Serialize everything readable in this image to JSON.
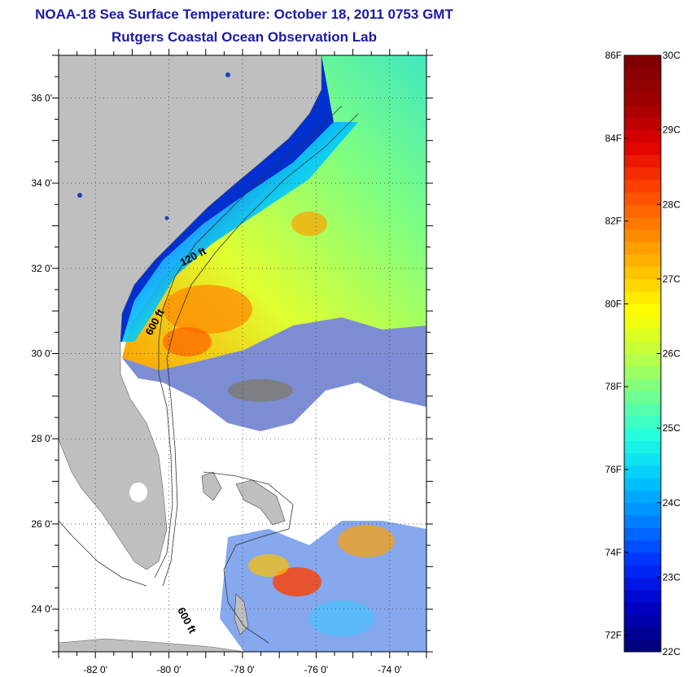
{
  "title": "NOAA-18 Sea Surface Temperature:  October 18, 2011 0753 GMT",
  "subtitle": "Rutgers Coastal Ocean Observation Lab",
  "map": {
    "lon_range": [
      -83,
      -73
    ],
    "lat_range": [
      23,
      37
    ],
    "lon_ticks": [
      {
        "value": -82,
        "label": "-82 0'"
      },
      {
        "value": -80,
        "label": "-80 0'"
      },
      {
        "value": -78,
        "label": "-78 0'"
      },
      {
        "value": -76,
        "label": "-76 0'"
      },
      {
        "value": -74,
        "label": "-74 0'"
      }
    ],
    "lat_ticks": [
      {
        "value": 24,
        "label": "24 0'"
      },
      {
        "value": 26,
        "label": "26 0'"
      },
      {
        "value": 28,
        "label": "28 0'"
      },
      {
        "value": 30,
        "label": "30 0'"
      },
      {
        "value": 32,
        "label": "32 0'"
      },
      {
        "value": 34,
        "label": "34 0'"
      },
      {
        "value": 36,
        "label": "36 0'"
      }
    ],
    "isobath_labels": [
      {
        "text": "120 ft",
        "lon": -79.3,
        "lat": 32.2,
        "rotate": -28
      },
      {
        "text": "600 ft",
        "lon": -80.3,
        "lat": 30.7,
        "rotate": -62
      },
      {
        "text": "600 ft",
        "lon": -79.6,
        "lat": 23.7,
        "rotate": 62
      }
    ],
    "land_color": "#bfbfbf",
    "cloud_color": "#ffffff"
  },
  "colorbar": {
    "range_c": [
      22,
      30
    ],
    "range_f": [
      72,
      86
    ],
    "celsius_ticks": [
      {
        "value": 30,
        "label": "30C"
      },
      {
        "value": 29,
        "label": "29C"
      },
      {
        "value": 28,
        "label": "28C"
      },
      {
        "value": 27,
        "label": "27C"
      },
      {
        "value": 26,
        "label": "26C"
      },
      {
        "value": 25,
        "label": "25C"
      },
      {
        "value": 24,
        "label": "24C"
      },
      {
        "value": 23,
        "label": "23C"
      },
      {
        "value": 22,
        "label": "22C"
      }
    ],
    "fahrenheit_ticks": [
      {
        "value": 86,
        "label": "86F"
      },
      {
        "value": 84,
        "label": "84F"
      },
      {
        "value": 82,
        "label": "82F"
      },
      {
        "value": 80,
        "label": "80F"
      },
      {
        "value": 78,
        "label": "78F"
      },
      {
        "value": 76,
        "label": "76F"
      },
      {
        "value": 74,
        "label": "74F"
      },
      {
        "value": 72,
        "label": "72F"
      }
    ],
    "colors": [
      "#000080",
      "#0000c8",
      "#0030ff",
      "#0080ff",
      "#00c8ff",
      "#20ffe0",
      "#70ff90",
      "#c0ff40",
      "#ffff00",
      "#ffc000",
      "#ff8000",
      "#ff4000",
      "#e00000",
      "#a00000",
      "#800000"
    ]
  }
}
